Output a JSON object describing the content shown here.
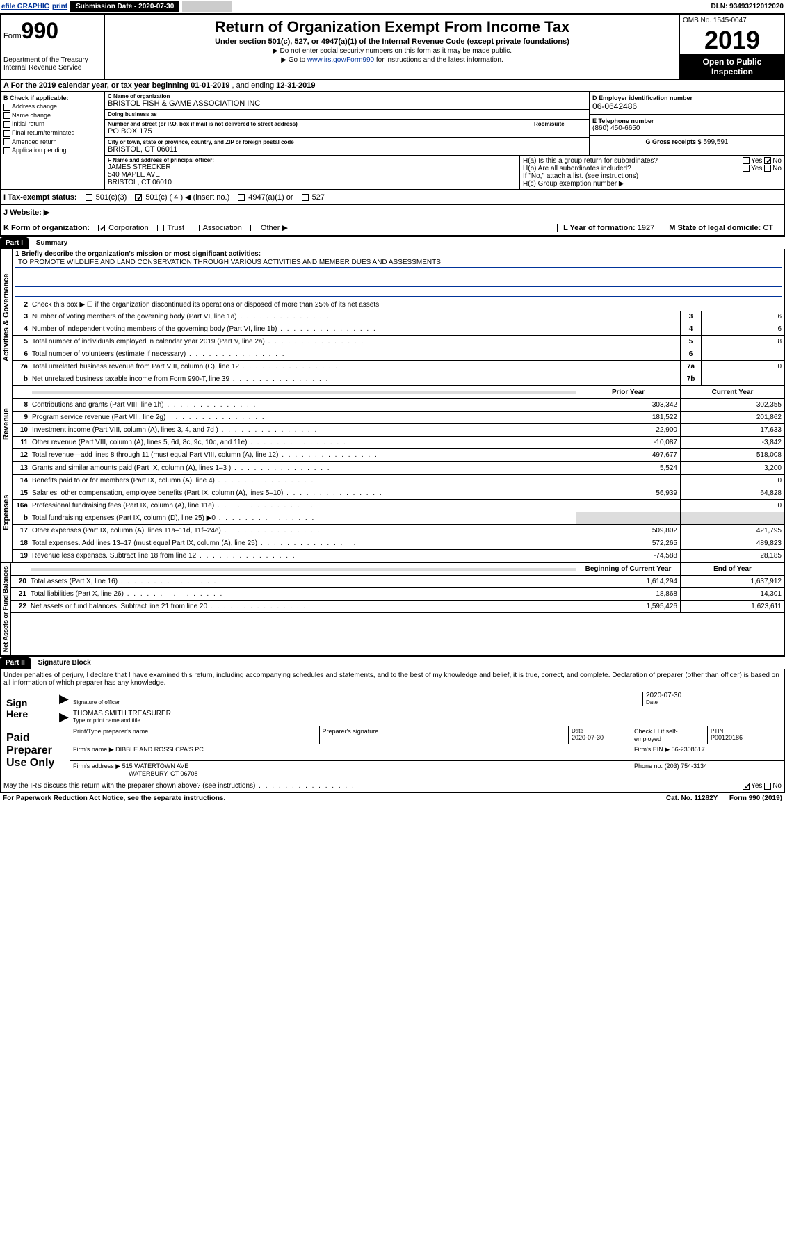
{
  "topbar": {
    "efile": "efile GRAPHIC",
    "print": "print",
    "subdate_label": "Submission Date - 2020-07-30",
    "dln": "DLN: 93493212012020"
  },
  "header": {
    "form_word": "Form",
    "form_num": "990",
    "dept": "Department of the Treasury\nInternal Revenue Service",
    "title": "Return of Organization Exempt From Income Tax",
    "subtitle": "Under section 501(c), 527, or 4947(a)(1) of the Internal Revenue Code (except private foundations)",
    "line1": "▶ Do not enter social security numbers on this form as it may be made public.",
    "line2_pre": "▶ Go to ",
    "line2_link": "www.irs.gov/Form990",
    "line2_post": " for instructions and the latest information.",
    "omb": "OMB No. 1545-0047",
    "year": "2019",
    "open": "Open to Public Inspection"
  },
  "rowA": {
    "text_pre": "A For the 2019 calendar year, or tax year beginning ",
    "begin": "01-01-2019",
    "mid": " , and ending ",
    "end": "12-31-2019"
  },
  "B": {
    "label": "B Check if applicable:",
    "opts": [
      "Address change",
      "Name change",
      "Initial return",
      "Final return/terminated",
      "Amended return",
      "Application pending"
    ]
  },
  "C": {
    "name_label": "C Name of organization",
    "name": "BRISTOL FISH & GAME ASSOCIATION INC",
    "dba_label": "Doing business as",
    "dba": "",
    "addr_label": "Number and street (or P.O. box if mail is not delivered to street address)",
    "room_label": "Room/suite",
    "addr": "PO BOX 175",
    "city_label": "City or town, state or province, country, and ZIP or foreign postal code",
    "city": "BRISTOL, CT 06011"
  },
  "D": {
    "label": "D Employer identification number",
    "val": "06-0642486"
  },
  "E": {
    "label": "E Telephone number",
    "val": "(860) 450-6650"
  },
  "G": {
    "label": "G Gross receipts $",
    "val": "599,591"
  },
  "F": {
    "label": "F Name and address of principal officer:",
    "name": "JAMES STRECKER",
    "addr1": "540 MAPLE AVE",
    "addr2": "BRISTOL, CT 06010"
  },
  "H": {
    "a": "H(a) Is this a group return for subordinates?",
    "b": "H(b) Are all subordinates included?",
    "b_note": "If \"No,\" attach a list. (see instructions)",
    "c": "H(c) Group exemption number ▶"
  },
  "I": {
    "label": "I Tax-exempt status:",
    "c4": "501(c) ( 4 ) ◀ (insert no.)"
  },
  "J": {
    "label": "J Website: ▶"
  },
  "K": {
    "label": "K Form of organization:",
    "corp": "Corporation",
    "trust": "Trust",
    "assoc": "Association",
    "other": "Other ▶"
  },
  "L": {
    "label": "L Year of formation:",
    "val": "1927"
  },
  "M": {
    "label": "M State of legal domicile:",
    "val": "CT"
  },
  "partI": {
    "header": "Part I",
    "title": "Summary",
    "mission_label": "1 Briefly describe the organization's mission or most significant activities:",
    "mission": "TO PROMOTE WILDLIFE AND LAND CONSERVATION THROUGH VARIOUS ACTIVITIES AND MEMBER DUES AND ASSESSMENTS",
    "line2": "Check this box ▶ ☐ if the organization discontinued its operations or disposed of more than 25% of its net assets.",
    "lines_gov": [
      {
        "n": "3",
        "t": "Number of voting members of the governing body (Part VI, line 1a)",
        "box": "3",
        "v": "6"
      },
      {
        "n": "4",
        "t": "Number of independent voting members of the governing body (Part VI, line 1b)",
        "box": "4",
        "v": "6"
      },
      {
        "n": "5",
        "t": "Total number of individuals employed in calendar year 2019 (Part V, line 2a)",
        "box": "5",
        "v": "8"
      },
      {
        "n": "6",
        "t": "Total number of volunteers (estimate if necessary)",
        "box": "6",
        "v": ""
      },
      {
        "n": "7a",
        "t": "Total unrelated business revenue from Part VIII, column (C), line 12",
        "box": "7a",
        "v": "0"
      },
      {
        "n": "b",
        "t": "Net unrelated business taxable income from Form 990-T, line 39",
        "box": "7b",
        "v": ""
      }
    ],
    "hdr_prior": "Prior Year",
    "hdr_current": "Current Year",
    "revenue": [
      {
        "n": "8",
        "t": "Contributions and grants (Part VIII, line 1h)",
        "p": "303,342",
        "c": "302,355"
      },
      {
        "n": "9",
        "t": "Program service revenue (Part VIII, line 2g)",
        "p": "181,522",
        "c": "201,862"
      },
      {
        "n": "10",
        "t": "Investment income (Part VIII, column (A), lines 3, 4, and 7d )",
        "p": "22,900",
        "c": "17,633"
      },
      {
        "n": "11",
        "t": "Other revenue (Part VIII, column (A), lines 5, 6d, 8c, 9c, 10c, and 11e)",
        "p": "-10,087",
        "c": "-3,842"
      },
      {
        "n": "12",
        "t": "Total revenue—add lines 8 through 11 (must equal Part VIII, column (A), line 12)",
        "p": "497,677",
        "c": "518,008"
      }
    ],
    "expenses": [
      {
        "n": "13",
        "t": "Grants and similar amounts paid (Part IX, column (A), lines 1–3 )",
        "p": "5,524",
        "c": "3,200"
      },
      {
        "n": "14",
        "t": "Benefits paid to or for members (Part IX, column (A), line 4)",
        "p": "",
        "c": "0"
      },
      {
        "n": "15",
        "t": "Salaries, other compensation, employee benefits (Part IX, column (A), lines 5–10)",
        "p": "56,939",
        "c": "64,828"
      },
      {
        "n": "16a",
        "t": "Professional fundraising fees (Part IX, column (A), line 11e)",
        "p": "",
        "c": "0"
      },
      {
        "n": "b",
        "t": "Total fundraising expenses (Part IX, column (D), line 25) ▶0",
        "p": "",
        "c": "",
        "grey": true
      },
      {
        "n": "17",
        "t": "Other expenses (Part IX, column (A), lines 11a–11d, 11f–24e)",
        "p": "509,802",
        "c": "421,795"
      },
      {
        "n": "18",
        "t": "Total expenses. Add lines 13–17 (must equal Part IX, column (A), line 25)",
        "p": "572,265",
        "c": "489,823"
      },
      {
        "n": "19",
        "t": "Revenue less expenses. Subtract line 18 from line 12",
        "p": "-74,588",
        "c": "28,185"
      }
    ],
    "hdr_begin": "Beginning of Current Year",
    "hdr_end": "End of Year",
    "netassets": [
      {
        "n": "20",
        "t": "Total assets (Part X, line 16)",
        "p": "1,614,294",
        "c": "1,637,912"
      },
      {
        "n": "21",
        "t": "Total liabilities (Part X, line 26)",
        "p": "18,868",
        "c": "14,301"
      },
      {
        "n": "22",
        "t": "Net assets or fund balances. Subtract line 21 from line 20",
        "p": "1,595,426",
        "c": "1,623,611"
      }
    ],
    "vert_gov": "Activities & Governance",
    "vert_rev": "Revenue",
    "vert_exp": "Expenses",
    "vert_net": "Net Assets or Fund Balances"
  },
  "partII": {
    "header": "Part II",
    "title": "Signature Block",
    "intro": "Under penalties of perjury, I declare that I have examined this return, including accompanying schedules and statements, and to the best of my knowledge and belief, it is true, correct, and complete. Declaration of preparer (other than officer) is based on all information of which preparer has any knowledge.",
    "sign_here": "Sign Here",
    "sig_officer": "Signature of officer",
    "sig_date": "2020-07-30",
    "date_label": "Date",
    "officer_name": "THOMAS SMITH TREASURER",
    "name_label": "Type or print name and title",
    "paid": "Paid Preparer Use Only",
    "prep_name_label": "Print/Type preparer's name",
    "prep_sig_label": "Preparer's signature",
    "prep_date": "2020-07-30",
    "check_self": "Check ☐ if self-employed",
    "ptin_label": "PTIN",
    "ptin": "P00120186",
    "firm_name_label": "Firm's name ▶",
    "firm_name": "DIBBLE AND ROSSI CPA'S PC",
    "firm_ein_label": "Firm's EIN ▶",
    "firm_ein": "56-2308617",
    "firm_addr_label": "Firm's address ▶",
    "firm_addr1": "515 WATERTOWN AVE",
    "firm_addr2": "WATERBURY, CT 06708",
    "phone_label": "Phone no.",
    "phone": "(203) 754-3134"
  },
  "footer": {
    "discuss": "May the IRS discuss this return with the preparer shown above? (see instructions)",
    "paperwork": "For Paperwork Reduction Act Notice, see the separate instructions.",
    "cat": "Cat. No. 11282Y",
    "form": "Form 990 (2019)"
  }
}
